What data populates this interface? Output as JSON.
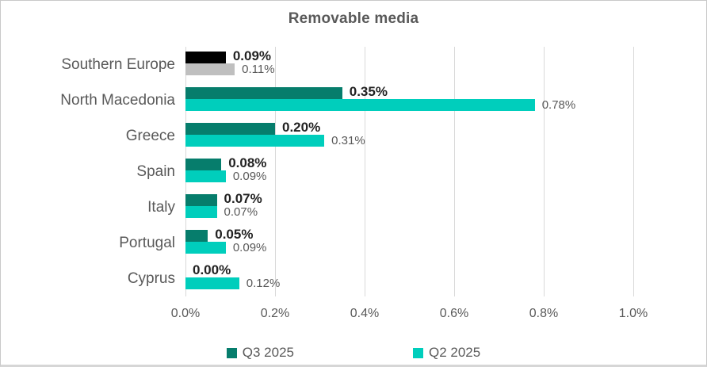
{
  "chart_data": {
    "type": "bar",
    "orientation": "horizontal",
    "title": "Removable media",
    "categories": [
      "Southern Europe",
      "North Macedonia",
      "Greece",
      "Spain",
      "Italy",
      "Portugal",
      "Cyprus"
    ],
    "series": [
      {
        "name": "Q3 2025",
        "color": "#067d6c",
        "values": [
          0.09,
          0.35,
          0.2,
          0.08,
          0.07,
          0.05,
          0.0
        ],
        "labels": [
          "0.09%",
          "0.35%",
          "0.20%",
          "0.08%",
          "0.07%",
          "0.05%",
          "0.00%"
        ]
      },
      {
        "name": "Q2 2025",
        "color": "#00cebc",
        "values": [
          0.11,
          0.78,
          0.31,
          0.09,
          0.07,
          0.09,
          0.12
        ],
        "labels": [
          "0.11%",
          "0.78%",
          "0.31%",
          "0.09%",
          "0.07%",
          "0.09%",
          "0.12%"
        ]
      }
    ],
    "category_color_overrides": {
      "0": [
        "#000000",
        "#bfbfbf"
      ]
    },
    "xlim": [
      0,
      1.0
    ],
    "x_ticks": [
      {
        "value": 0.0,
        "label": "0.0%"
      },
      {
        "value": 0.2,
        "label": "0.2%"
      },
      {
        "value": 0.4,
        "label": "0.4%"
      },
      {
        "value": 0.6,
        "label": "0.6%"
      },
      {
        "value": 0.8,
        "label": "0.8%"
      },
      {
        "value": 1.0,
        "label": "1.0%"
      }
    ],
    "grid": true,
    "legend_position": "bottom",
    "colors": {
      "text": "#595959",
      "value_label_q3": "#222222",
      "gridline": "#d9d9d9",
      "background": "#ffffff"
    }
  }
}
